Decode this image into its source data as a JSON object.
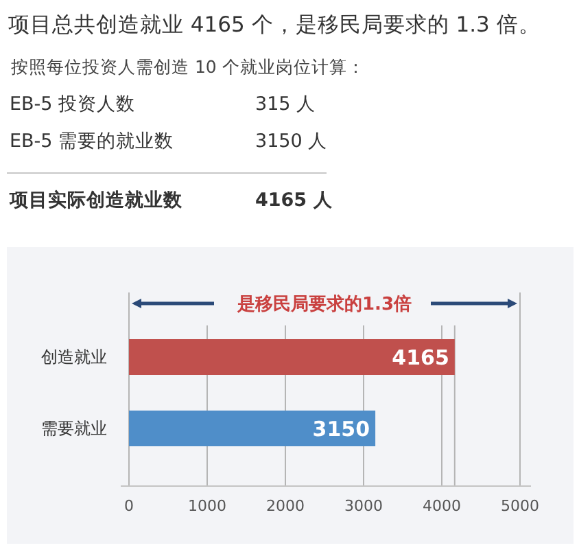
{
  "chart_data": {
    "type": "bar",
    "orientation": "horizontal",
    "title": "项目总共创造就业 4165 个，是移民局要求的 1.3 倍。",
    "subtitle": "按照每位投资人需创造 10 个就业岗位计算：",
    "annotations": [
      "EB-5 投资人数",
      "315 人",
      "EB-5 需要的就业数",
      "3150 人",
      "项目实际创造就业数",
      "4165 人",
      "是移民局要求的1.3倍"
    ],
    "categories": [
      "创造就业",
      "需要就业"
    ],
    "values": [
      4165,
      3150
    ],
    "colors": [
      "#c0504d",
      "#4f8ec9"
    ],
    "xlim": [
      0,
      5000
    ],
    "xticks": [
      0,
      1000,
      2000,
      3000,
      4000,
      5000
    ],
    "grid": "x",
    "data_labels": true,
    "ref_lines": [
      {
        "axis": "x",
        "value": 4165,
        "color": "#b5b5b5"
      }
    ]
  }
}
